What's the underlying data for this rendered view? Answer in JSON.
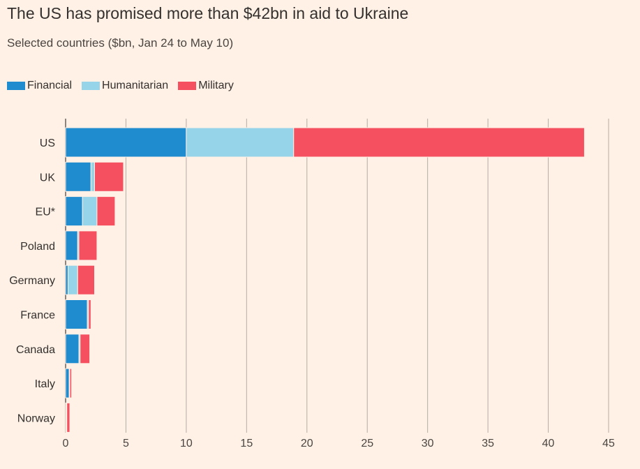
{
  "chart_data": {
    "type": "bar",
    "orientation": "horizontal",
    "stacked": true,
    "title": "The US has promised more than $42bn in aid to Ukraine",
    "subtitle": "Selected countries ($bn, Jan 24 to May 10)",
    "xlabel": "",
    "ylabel": "",
    "xlim": [
      0,
      45
    ],
    "xticks": [
      0,
      5,
      10,
      15,
      20,
      25,
      30,
      35,
      40,
      45
    ],
    "grid": true,
    "legend_position": "top-left",
    "categories": [
      "US",
      "UK",
      "EU*",
      "Poland",
      "Germany",
      "France",
      "Canada",
      "Italy",
      "Norway"
    ],
    "series": [
      {
        "name": "Financial",
        "color": "#1F8CD0",
        "values": [
          10.0,
          2.1,
          1.4,
          1.0,
          0.2,
          1.8,
          1.1,
          0.3,
          0.05
        ]
      },
      {
        "name": "Humanitarian",
        "color": "#96D4EA",
        "values": [
          8.9,
          0.3,
          1.2,
          0.1,
          0.8,
          0.1,
          0.1,
          0.05,
          0.05
        ]
      },
      {
        "name": "Military",
        "color": "#F4505F",
        "values": [
          24.1,
          2.4,
          1.5,
          1.5,
          1.4,
          0.2,
          0.8,
          0.15,
          0.25
        ]
      }
    ]
  }
}
